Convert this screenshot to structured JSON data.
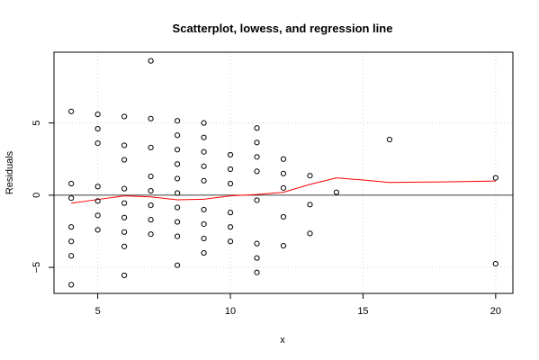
{
  "chart_data": {
    "type": "scatter",
    "title": "Scatterplot, lowess, and regression line",
    "xlabel": "x",
    "ylabel": "Residuals",
    "xlim": [
      3.35,
      20.65
    ],
    "ylim": [
      -6.8,
      9.9
    ],
    "xticks": [
      5,
      10,
      15,
      20
    ],
    "yticks": [
      -5,
      0,
      5
    ],
    "grid": true,
    "points": [
      {
        "x": 4,
        "y": 5.8
      },
      {
        "x": 4,
        "y": 0.8
      },
      {
        "x": 4,
        "y": -0.2
      },
      {
        "x": 4,
        "y": -2.2
      },
      {
        "x": 4,
        "y": -3.2
      },
      {
        "x": 4,
        "y": -4.2
      },
      {
        "x": 4,
        "y": -6.2
      },
      {
        "x": 5,
        "y": 5.6
      },
      {
        "x": 5,
        "y": 4.6
      },
      {
        "x": 5,
        "y": 3.6
      },
      {
        "x": 5,
        "y": 0.6
      },
      {
        "x": 5,
        "y": -0.4
      },
      {
        "x": 5,
        "y": -1.4
      },
      {
        "x": 5,
        "y": -2.4
      },
      {
        "x": 6,
        "y": 5.45
      },
      {
        "x": 6,
        "y": 3.45
      },
      {
        "x": 6,
        "y": 2.45
      },
      {
        "x": 6,
        "y": 0.45
      },
      {
        "x": 6,
        "y": -0.55
      },
      {
        "x": 6,
        "y": -1.55
      },
      {
        "x": 6,
        "y": -2.55
      },
      {
        "x": 6,
        "y": -3.55
      },
      {
        "x": 6,
        "y": -5.55
      },
      {
        "x": 7,
        "y": 9.3
      },
      {
        "x": 7,
        "y": 5.3
      },
      {
        "x": 7,
        "y": 3.3
      },
      {
        "x": 7,
        "y": 1.3
      },
      {
        "x": 7,
        "y": 0.3
      },
      {
        "x": 7,
        "y": -0.7
      },
      {
        "x": 7,
        "y": -1.7
      },
      {
        "x": 7,
        "y": -2.7
      },
      {
        "x": 8,
        "y": 5.15
      },
      {
        "x": 8,
        "y": 4.15
      },
      {
        "x": 8,
        "y": 3.15
      },
      {
        "x": 8,
        "y": 2.15
      },
      {
        "x": 8,
        "y": 1.15
      },
      {
        "x": 8,
        "y": 0.15
      },
      {
        "x": 8,
        "y": -0.85
      },
      {
        "x": 8,
        "y": -1.85
      },
      {
        "x": 8,
        "y": -2.85
      },
      {
        "x": 8,
        "y": -4.85
      },
      {
        "x": 9,
        "y": 5.0
      },
      {
        "x": 9,
        "y": 4.0
      },
      {
        "x": 9,
        "y": 3.0
      },
      {
        "x": 9,
        "y": 2.0
      },
      {
        "x": 9,
        "y": 1.0
      },
      {
        "x": 9,
        "y": -1.0
      },
      {
        "x": 9,
        "y": -2.0
      },
      {
        "x": 9,
        "y": -3.0
      },
      {
        "x": 9,
        "y": -4.0
      },
      {
        "x": 10,
        "y": 2.8
      },
      {
        "x": 10,
        "y": 1.8
      },
      {
        "x": 10,
        "y": 0.8
      },
      {
        "x": 10,
        "y": -1.2
      },
      {
        "x": 10,
        "y": -2.2
      },
      {
        "x": 10,
        "y": -3.2
      },
      {
        "x": 11,
        "y": 4.65
      },
      {
        "x": 11,
        "y": 3.65
      },
      {
        "x": 11,
        "y": 2.65
      },
      {
        "x": 11,
        "y": 1.65
      },
      {
        "x": 11,
        "y": -0.35
      },
      {
        "x": 11,
        "y": -3.35
      },
      {
        "x": 11,
        "y": -4.35
      },
      {
        "x": 11,
        "y": -5.35
      },
      {
        "x": 12,
        "y": 2.5
      },
      {
        "x": 12,
        "y": 1.5
      },
      {
        "x": 12,
        "y": 0.5
      },
      {
        "x": 12,
        "y": -1.5
      },
      {
        "x": 12,
        "y": -3.5
      },
      {
        "x": 13,
        "y": 1.35
      },
      {
        "x": 13,
        "y": -0.65
      },
      {
        "x": 13,
        "y": -2.65
      },
      {
        "x": 14,
        "y": 0.2
      },
      {
        "x": 16,
        "y": 3.85
      },
      {
        "x": 20,
        "y": 1.2
      },
      {
        "x": 20,
        "y": -4.75
      }
    ],
    "lowess": {
      "x": [
        4,
        5,
        6,
        7,
        8,
        9,
        10,
        11,
        12,
        13,
        14,
        15,
        16,
        17,
        18,
        19,
        20
      ],
      "y": [
        -0.55,
        -0.3,
        -0.05,
        -0.12,
        -0.32,
        -0.28,
        -0.05,
        0.05,
        0.2,
        0.75,
        1.2,
        1.05,
        0.88,
        0.9,
        0.92,
        0.95,
        0.98
      ]
    },
    "regression": {
      "intercept": 0,
      "slope": 0
    },
    "colors": {
      "points": "#000000",
      "lowess": "#ff0000",
      "regression": "#000000",
      "grid": "#d3d3d3"
    }
  }
}
